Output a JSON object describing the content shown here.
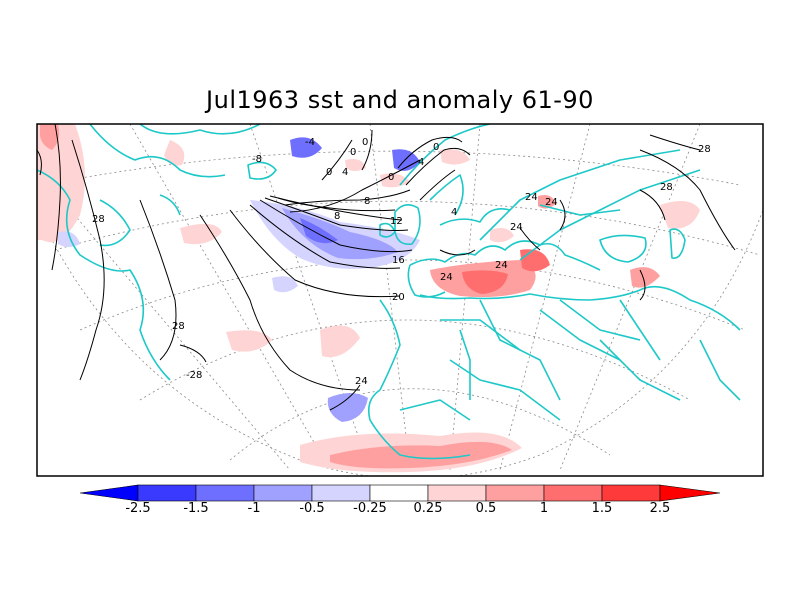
{
  "title": "Jul1963 sst and anomaly 61-90",
  "contour_labels": [
    "28",
    "28",
    "28",
    "28",
    "-28",
    "24",
    "24",
    "24",
    "24",
    "24",
    "24",
    "20",
    "16",
    "12",
    "8",
    "8",
    "4",
    "4",
    "4",
    "0",
    "0",
    "0",
    "0",
    "0",
    "-8",
    "-4"
  ],
  "colorbar": {
    "colors": [
      "#0000ff",
      "#3a3aff",
      "#6e6eff",
      "#a0a0ff",
      "#d4d4ff",
      "#ffffff",
      "#ffd4d4",
      "#ffa0a0",
      "#ff6e6e",
      "#ff3a3a",
      "#ff0000"
    ],
    "tick_labels": [
      "-2.5",
      "-1.5",
      "-1",
      "-0.5",
      "-0.25",
      "0.25",
      "0.5",
      "1",
      "1.5",
      "2.5"
    ]
  },
  "colors": {
    "coastline": "#1ec8c8",
    "grid": "#8a8a8a",
    "contour": "#000000"
  }
}
